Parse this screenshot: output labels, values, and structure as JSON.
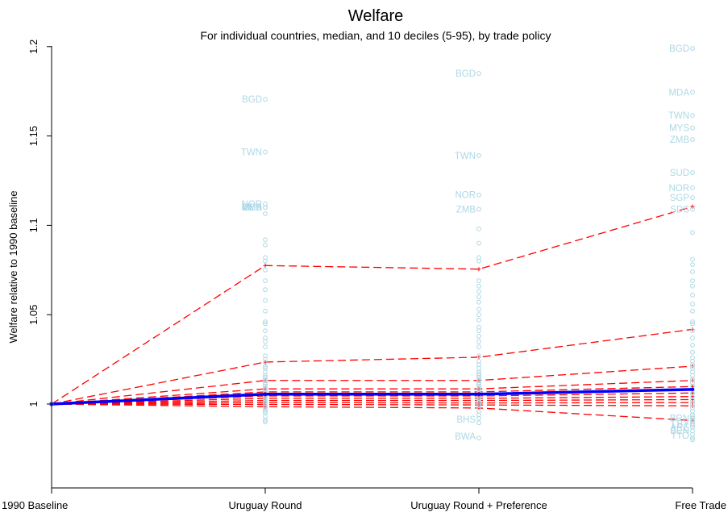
{
  "chart_data": {
    "type": "line",
    "title": "Welfare",
    "subtitle": "For individual countries, median, and 10 deciles (5-95), by trade policy",
    "ylabel": "Welfare relative to 1990 baseline",
    "xlabel": "",
    "categories": [
      "1990 Baseline",
      "Uruguay Round",
      "Uruguay Round + Preference",
      "Free Trade"
    ],
    "ylim": [
      0.96,
      1.2
    ],
    "yticks": [
      1,
      1.05,
      1.1,
      1.15,
      1.2
    ],
    "ytick_labels": [
      "1",
      "1.05",
      "1.1",
      "1.15",
      "1.2"
    ],
    "grid": false,
    "median": {
      "values": [
        1.0,
        1.0055,
        1.0055,
        1.0082
      ],
      "color": "#0000ff"
    },
    "deciles": {
      "color": "#ff0000",
      "series": [
        [
          1.0,
          1.0775,
          1.0755,
          1.1105
        ],
        [
          1.0,
          1.0235,
          1.0262,
          1.0418
        ],
        [
          1.0,
          1.0132,
          1.0132,
          1.0212
        ],
        [
          1.0,
          1.0085,
          1.0085,
          1.0132
        ],
        [
          1.0,
          1.0068,
          1.0068,
          1.0098
        ],
        [
          1.0,
          1.0045,
          1.0045,
          1.0062
        ],
        [
          1.0,
          1.0032,
          1.0032,
          1.0042
        ],
        [
          1.0,
          1.002,
          1.002,
          1.0025
        ],
        [
          1.0,
          1.0008,
          1.0006,
          1.0008
        ],
        [
          1.0,
          0.9998,
          0.9995,
          0.999
        ],
        [
          1.0,
          0.9985,
          0.9978,
          0.9908
        ]
      ]
    },
    "points_color": "#add8e6",
    "points": [
      [
        1.1705,
        1.141,
        1.112,
        1.11,
        1.11,
        1.1065,
        1.092,
        1.089,
        1.082,
        1.08,
        1.075,
        1.069,
        1.064,
        1.058,
        1.052,
        1.046,
        1.045,
        1.041,
        1.037,
        1.035,
        1.032,
        1.027,
        1.025,
        1.023,
        1.021,
        1.02,
        1.018,
        1.016,
        1.015,
        1.014,
        1.013,
        1.012,
        1.011,
        1.01,
        1.009,
        1.008,
        1.007,
        1.006,
        1.005,
        1.004,
        1.003,
        1.002,
        1.001,
        1.0,
        0.999,
        0.998,
        0.997,
        0.996,
        0.995,
        0.993,
        0.991,
        0.99
      ],
      [
        1.185,
        1.139,
        1.117,
        1.109,
        1.098,
        1.09,
        1.082,
        1.08,
        1.069,
        1.066,
        1.063,
        1.06,
        1.057,
        1.053,
        1.05,
        1.047,
        1.043,
        1.041,
        1.038,
        1.035,
        1.032,
        1.027,
        1.024,
        1.022,
        1.02,
        1.018,
        1.017,
        1.016,
        1.015,
        1.014,
        1.013,
        1.012,
        1.011,
        1.01,
        1.009,
        1.008,
        1.007,
        1.006,
        1.005,
        1.004,
        1.003,
        1.002,
        1.001,
        1.0,
        0.999,
        0.998,
        0.996,
        0.994,
        0.992,
        0.9895,
        0.981
      ],
      [
        1.199,
        1.1745,
        1.1615,
        1.1545,
        1.148,
        1.1295,
        1.121,
        1.1155,
        1.109,
        1.096,
        1.081,
        1.078,
        1.074,
        1.069,
        1.066,
        1.061,
        1.056,
        1.052,
        1.046,
        1.045,
        1.041,
        1.037,
        1.033,
        1.029,
        1.026,
        1.024,
        1.022,
        1.02,
        1.018,
        1.016,
        1.014,
        1.012,
        1.01,
        1.008,
        1.006,
        1.004,
        1.002,
        1.0,
        0.998,
        0.996,
        0.994,
        0.993,
        0.992,
        0.991,
        0.99,
        0.989,
        0.988,
        0.987,
        0.985,
        0.983,
        0.981,
        0.98
      ]
    ],
    "labels": [
      [
        {
          "text": "BGD",
          "y": 1.1705
        },
        {
          "text": "TWN",
          "y": 1.141
        },
        {
          "text": "NOR",
          "y": 1.112
        },
        {
          "text": "MDA",
          "y": 1.11
        },
        {
          "text": "MYS",
          "y": 1.11
        },
        {
          "text": "ZMB",
          "y": 1.11
        }
      ],
      [
        {
          "text": "BGD",
          "y": 1.185
        },
        {
          "text": "TWN",
          "y": 1.139
        },
        {
          "text": "NOR",
          "y": 1.117
        },
        {
          "text": "ZMB",
          "y": 1.109
        },
        {
          "text": "BHS",
          "y": 0.9915
        },
        {
          "text": "BWA",
          "y": 0.982
        }
      ],
      [
        {
          "text": "BGD",
          "y": 1.199
        },
        {
          "text": "MDA",
          "y": 1.1745
        },
        {
          "text": "TWN",
          "y": 1.1615
        },
        {
          "text": "MYS",
          "y": 1.1545
        },
        {
          "text": "ZMB",
          "y": 1.148
        },
        {
          "text": "SUD",
          "y": 1.1295
        },
        {
          "text": "NOR",
          "y": 1.121
        },
        {
          "text": "SGP",
          "y": 1.1155
        },
        {
          "text": "SDS",
          "y": 1.109
        },
        {
          "text": "BRN",
          "y": 0.992
        },
        {
          "text": "LBY",
          "y": 0.989
        },
        {
          "text": "ARE",
          "y": 0.987
        },
        {
          "text": "BEN",
          "y": 0.985
        },
        {
          "text": "TTO",
          "y": 0.9825
        }
      ]
    ]
  }
}
